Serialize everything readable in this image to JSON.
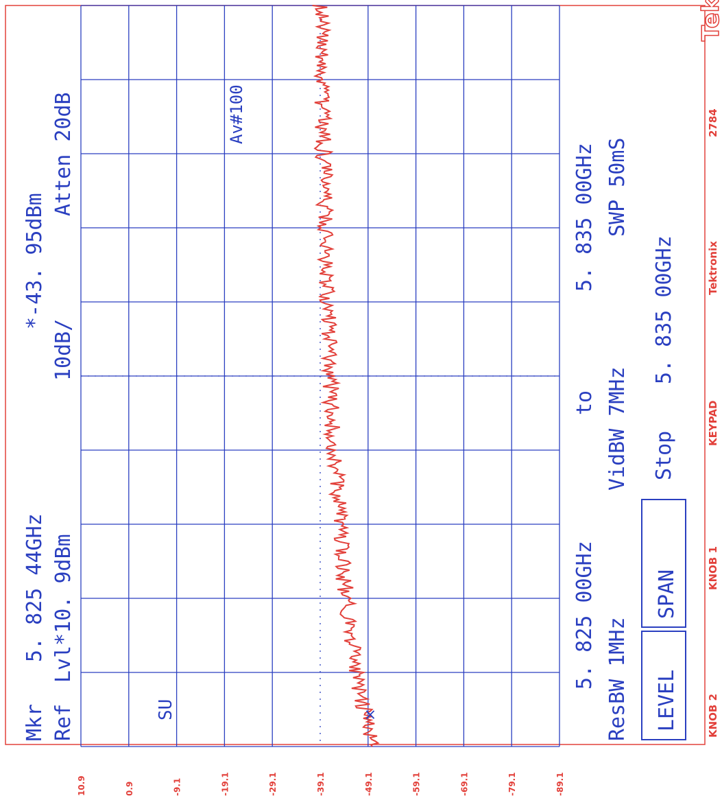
{
  "brand": {
    "logo": "Tek",
    "vendor": "Tektronix",
    "model_number": "2784"
  },
  "header": {
    "marker_label": "Mkr",
    "marker_freq": "5. 825  44GHz",
    "marker_level": "*-43. 95dBm",
    "ref_label": "Ref",
    "ref_level": "Lvl*10. 9dBm",
    "scale": "10dB/",
    "attenuation": "Atten  20dB"
  },
  "annotations": {
    "averaging": "Av#100",
    "mode": "SU"
  },
  "footer": {
    "start_freq": "5. 825  00GHz",
    "to_label": "to",
    "end_freq": "5. 835  00GHz",
    "res_bw": "ResBW  1MHz",
    "vid_bw": "VidBW  7MHz",
    "sweep": "SWP  50mS",
    "stop_label": "Stop",
    "stop_freq": "5. 835  00GHz",
    "btn_level": "LEVEL",
    "btn_span": "SPAN"
  },
  "controls": {
    "knob2": "KNOB 2",
    "knob1": "KNOB 1",
    "keypad": "KEYPAD"
  },
  "colors": {
    "grid": "#2a3fc0",
    "trace": "#e2403a",
    "frame": "#e2403a",
    "text": "#2a3fc0"
  },
  "chart_data": {
    "type": "line",
    "orientation": "rotated 90° clockwise (frequency runs bottom-to-top, level runs left-to-right)",
    "xlabel": "",
    "ylabel": "",
    "xlim": [
      5.825,
      5.835
    ],
    "x_unit": "GHz",
    "ylim": [
      -80.1,
      10.9
    ],
    "y_unit": "dBm",
    "y_ticks": [
      "10.9",
      "0.9",
      "-9.1",
      "-19.1",
      "-29.1",
      "-39.1",
      "-49.1",
      "-59.1",
      "-69.1",
      "-79.1",
      "-89.1"
    ],
    "grid": true,
    "marker": {
      "x": 5.82544,
      "y": -43.95
    },
    "series": [
      {
        "x": [
          5.825,
          5.8255,
          5.826,
          5.8265,
          5.827,
          5.8275,
          5.828,
          5.8285,
          5.829,
          5.8295,
          5.83,
          5.8305,
          5.831,
          5.8315,
          5.832,
          5.8325,
          5.833,
          5.8335,
          5.834,
          5.8345,
          5.835
        ],
        "values": [
          -44.5,
          -43.0,
          -41.5,
          -40.5,
          -39.5,
          -38.8,
          -38.2,
          -37.8,
          -37.3,
          -36.8,
          -36.5,
          -36.2,
          -36.0,
          -35.8,
          -35.6,
          -35.4,
          -35.2,
          -35.0,
          -34.9,
          -34.8,
          -34.6
        ]
      }
    ]
  }
}
